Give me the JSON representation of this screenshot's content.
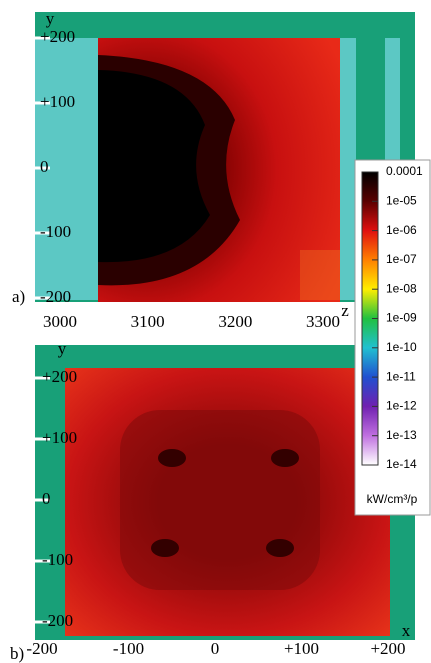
{
  "panels": [
    {
      "label": "a)",
      "y_axis": "y",
      "x_axis": "z",
      "y_ticks": [
        "+200",
        "+100",
        "0",
        "-100",
        "-200"
      ],
      "x_ticks": [
        "3000",
        "3100",
        "3200",
        "3300"
      ]
    },
    {
      "label": "b)",
      "y_axis": "y",
      "x_axis": "x",
      "y_ticks": [
        "+200",
        "+100",
        "0",
        "-100",
        "-200"
      ],
      "x_ticks": [
        "-200",
        "-100",
        "0",
        "+100",
        "+200"
      ]
    }
  ],
  "colorbar": {
    "ticks": [
      "0.0001",
      "1e-05",
      "1e-06",
      "1e-07",
      "1e-08",
      "1e-09",
      "1e-10",
      "1e-11",
      "1e-12",
      "1e-13",
      "1e-14"
    ],
    "unit": "kW/cm³/p"
  }
}
